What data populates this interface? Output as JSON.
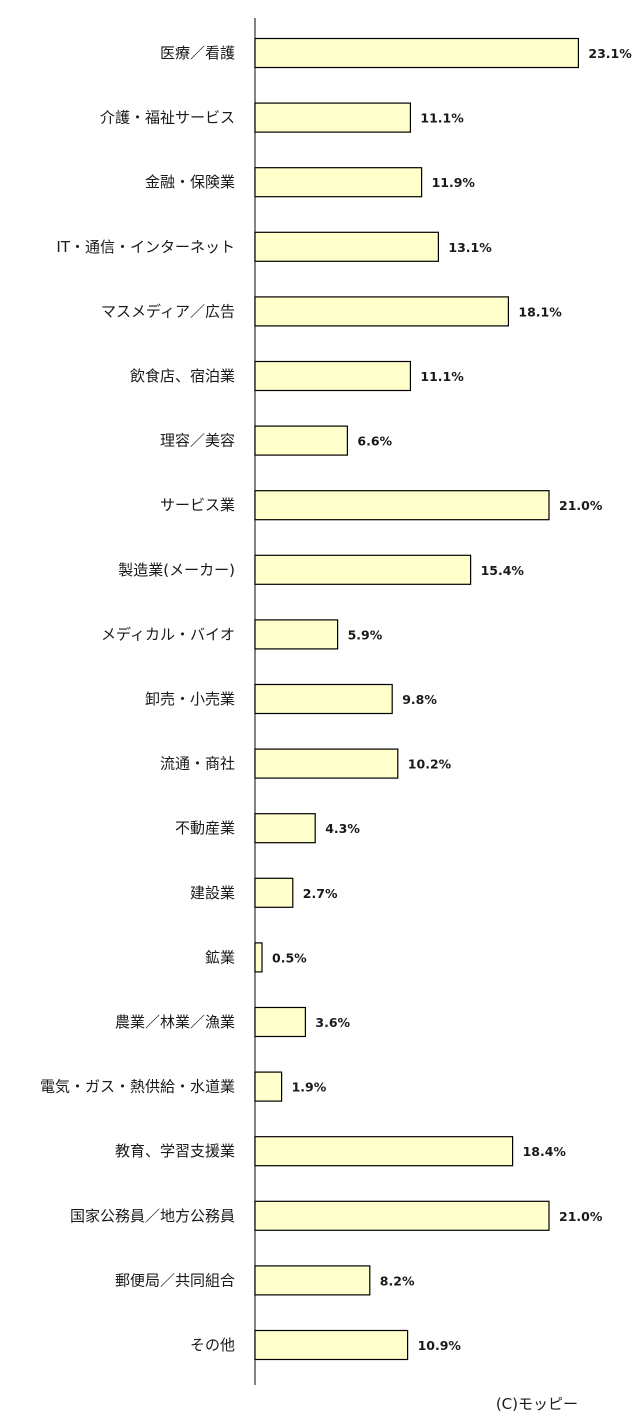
{
  "chart_data": {
    "type": "bar",
    "orientation": "horizontal",
    "categories": [
      "医療／看護",
      "介護・福祉サービス",
      "金融・保険業",
      "IT・通信・インターネット",
      "マスメディア／広告",
      "飲食店、宿泊業",
      "理容／美容",
      "サービス業",
      "製造業(メーカー)",
      "メディカル・バイオ",
      "卸売・小売業",
      "流通・商社",
      "不動産業",
      "建設業",
      "鉱業",
      "農業／林業／漁業",
      "電気・ガス・熱供給・水道業",
      "教育、学習支援業",
      "国家公務員／地方公務員",
      "郵便局／共同組合",
      "その他"
    ],
    "values": [
      23.1,
      11.1,
      11.9,
      13.1,
      18.1,
      11.1,
      6.6,
      21.0,
      15.4,
      5.9,
      9.8,
      10.2,
      4.3,
      2.7,
      0.5,
      3.6,
      1.9,
      18.4,
      21.0,
      8.2,
      10.9
    ],
    "value_labels": [
      "23.1%",
      "11.1%",
      "11.9%",
      "13.1%",
      "18.1%",
      "11.1%",
      "6.6%",
      "21.0%",
      "15.4%",
      "5.9%",
      "9.8%",
      "10.2%",
      "4.3%",
      "2.7%",
      "0.5%",
      "3.6%",
      "1.9%",
      "18.4%",
      "21.0%",
      "8.2%",
      "10.9%"
    ],
    "unit": "%",
    "xlim": [
      0,
      25
    ],
    "grid": false,
    "legend": "none",
    "bar_fill": "#ffffcc",
    "bar_stroke": "#000000"
  },
  "credit": "(C)モッピー"
}
